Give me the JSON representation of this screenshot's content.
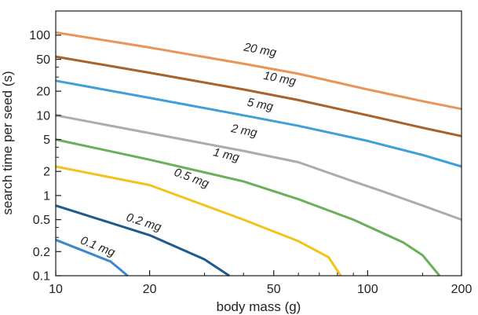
{
  "chart_data": {
    "type": "line",
    "title": "",
    "xlabel": "body mass (g)",
    "ylabel": "search time per seed (s)",
    "xscale": "log",
    "yscale": "log",
    "xlim": [
      10,
      200
    ],
    "ylim": [
      0.1,
      200
    ],
    "grid": false,
    "legend": "inline labels",
    "x_ticks": [
      10,
      20,
      50,
      100,
      200
    ],
    "x_tick_labels": [
      "10",
      "20",
      "50",
      "100",
      "200"
    ],
    "y_ticks": [
      0.1,
      0.2,
      0.5,
      1,
      2,
      5,
      10,
      20,
      50,
      100
    ],
    "y_tick_labels": [
      "0.1",
      "0.2",
      "0.5",
      "1",
      "2",
      "5",
      "10",
      "20",
      "50",
      "100"
    ],
    "series": [
      {
        "name": "20 mg",
        "color": "#E8955A",
        "label_at": [
          45,
          59
        ],
        "x": [
          10,
          20,
          40,
          60,
          100,
          150,
          200
        ],
        "y": [
          108,
          70,
          44,
          33,
          21,
          15,
          12
        ]
      },
      {
        "name": "10 mg",
        "color": "#A8622A",
        "label_at": [
          52,
          26
        ],
        "x": [
          10,
          20,
          40,
          60,
          100,
          150,
          200
        ],
        "y": [
          54,
          34,
          21,
          15.5,
          10,
          7,
          5.5
        ]
      },
      {
        "name": "5 mg",
        "color": "#3FA0D8",
        "label_at": [
          45,
          12.3
        ],
        "x": [
          10,
          20,
          40,
          60,
          100,
          150,
          200
        ],
        "y": [
          27,
          16.5,
          10,
          7.4,
          4.8,
          3.2,
          2.3
        ]
      },
      {
        "name": "2 mg",
        "color": "#A9ACB2",
        "label_at": [
          40,
          5.8
        ],
        "x": [
          10,
          20,
          40,
          60,
          90,
          110,
          150,
          200
        ],
        "y": [
          10,
          6,
          3.6,
          2.6,
          1.5,
          1.15,
          0.75,
          0.5
        ]
      },
      {
        "name": "1 mg",
        "color": "#6BAF5B",
        "label_at": [
          35,
          2.9
        ],
        "x": [
          10,
          20,
          40,
          60,
          90,
          130,
          150,
          170
        ],
        "y": [
          5,
          2.8,
          1.5,
          0.9,
          0.5,
          0.26,
          0.18,
          0.1
        ]
      },
      {
        "name": "0.5 mg",
        "color": "#F2C31C",
        "label_at": [
          27,
          1.5
        ],
        "x": [
          10,
          20,
          40,
          60,
          75,
          82
        ],
        "y": [
          2.3,
          1.35,
          0.5,
          0.27,
          0.17,
          0.1
        ]
      },
      {
        "name": "0.2 mg",
        "color": "#1E5A8C",
        "label_at": [
          19,
          0.42
        ],
        "x": [
          10,
          20,
          30,
          36
        ],
        "y": [
          0.75,
          0.32,
          0.16,
          0.1
        ]
      },
      {
        "name": "0.1 mg",
        "color": "#3A87CC",
        "label_at": [
          13.5,
          0.21
        ],
        "x": [
          10,
          15,
          17
        ],
        "y": [
          0.28,
          0.15,
          0.1
        ]
      }
    ]
  }
}
